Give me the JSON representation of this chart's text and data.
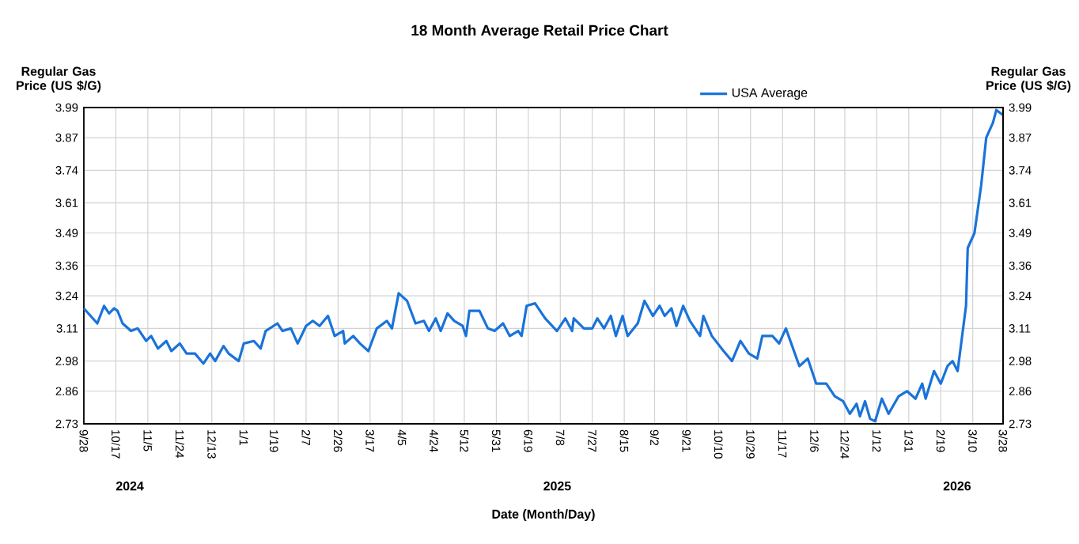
{
  "chart_data": {
    "type": "line",
    "title": "18 Month Average Retail Price Chart",
    "xlabel": "Date (Month/Day)",
    "ylabel": "Regular Gas Price (US $/G)",
    "y2label": "Regular Gas Price (US $/G)",
    "xlim": [
      "2024-09-28",
      "2026-03-28"
    ],
    "xticks": [
      {
        "value": "2024-09-28",
        "label": "9/28"
      },
      {
        "value": "2024-10-17",
        "label": "10/17"
      },
      {
        "value": "2024-11-05",
        "label": "11/5"
      },
      {
        "value": "2024-11-24",
        "label": "11/24"
      },
      {
        "value": "2024-12-13",
        "label": "12/13"
      },
      {
        "value": "2025-01-01",
        "label": "1/1"
      },
      {
        "value": "2025-01-19",
        "label": "1/19"
      },
      {
        "value": "2025-02-07",
        "label": "2/7"
      },
      {
        "value": "2025-02-26",
        "label": "2/26"
      },
      {
        "value": "2025-03-17",
        "label": "3/17"
      },
      {
        "value": "2025-04-05",
        "label": "4/5"
      },
      {
        "value": "2025-04-24",
        "label": "4/24"
      },
      {
        "value": "2025-05-12",
        "label": "5/12"
      },
      {
        "value": "2025-05-31",
        "label": "5/31"
      },
      {
        "value": "2025-06-19",
        "label": "6/19"
      },
      {
        "value": "2025-07-08",
        "label": "7/8"
      },
      {
        "value": "2025-07-27",
        "label": "7/27"
      },
      {
        "value": "2025-08-15",
        "label": "8/15"
      },
      {
        "value": "2025-09-02",
        "label": "9/2"
      },
      {
        "value": "2025-09-21",
        "label": "9/21"
      },
      {
        "value": "2025-10-10",
        "label": "10/10"
      },
      {
        "value": "2025-10-29",
        "label": "10/29"
      },
      {
        "value": "2025-11-17",
        "label": "11/17"
      },
      {
        "value": "2025-12-06",
        "label": "12/6"
      },
      {
        "value": "2025-12-24",
        "label": "12/24"
      },
      {
        "value": "2026-01-12",
        "label": "1/12"
      },
      {
        "value": "2026-01-31",
        "label": "1/31"
      },
      {
        "value": "2026-02-19",
        "label": "2/19"
      },
      {
        "value": "2026-03-10",
        "label": "3/10"
      },
      {
        "value": "2026-03-28",
        "label": "3/28"
      }
    ],
    "ylim": [
      2.73,
      3.99
    ],
    "yticks": [
      2.73,
      2.86,
      2.98,
      3.11,
      3.24,
      3.36,
      3.49,
      3.61,
      3.74,
      3.87,
      3.99
    ],
    "y2lim": [
      2.73,
      3.99
    ],
    "y2ticks": [
      2.73,
      2.86,
      2.98,
      3.11,
      3.24,
      3.36,
      3.49,
      3.61,
      3.74,
      3.87,
      3.99
    ],
    "grid": true,
    "legend": "top",
    "marker": "none",
    "line_style": "solid",
    "annotations": [
      "2024",
      "2025",
      "2026"
    ],
    "series": [
      {
        "name": "USA Average",
        "color": "#1a73d9",
        "x": [
          "2024-09-28",
          "2024-10-06",
          "2024-10-10",
          "2024-10-13",
          "2024-10-16",
          "2024-10-18",
          "2024-10-21",
          "2024-10-26",
          "2024-10-30",
          "2024-11-04",
          "2024-11-07",
          "2024-11-11",
          "2024-11-16",
          "2024-11-19",
          "2024-11-24",
          "2024-11-28",
          "2024-12-03",
          "2024-12-08",
          "2024-12-12",
          "2024-12-15",
          "2024-12-20",
          "2024-12-23",
          "2024-12-29",
          "2025-01-01",
          "2025-01-07",
          "2025-01-11",
          "2025-01-14",
          "2025-01-21",
          "2025-01-24",
          "2025-01-29",
          "2025-02-02",
          "2025-02-07",
          "2025-02-11",
          "2025-02-15",
          "2025-02-20",
          "2025-02-24",
          "2025-03-01",
          "2025-03-02",
          "2025-03-07",
          "2025-03-11",
          "2025-03-16",
          "2025-03-21",
          "2025-03-27",
          "2025-03-30",
          "2025-04-03",
          "2025-04-08",
          "2025-04-13",
          "2025-04-18",
          "2025-04-21",
          "2025-04-25",
          "2025-04-28",
          "2025-05-02",
          "2025-05-06",
          "2025-05-11",
          "2025-05-13",
          "2025-05-15",
          "2025-05-21",
          "2025-05-26",
          "2025-05-30",
          "2025-06-04",
          "2025-06-08",
          "2025-06-13",
          "2025-06-15",
          "2025-06-18",
          "2025-06-23",
          "2025-06-29",
          "2025-07-06",
          "2025-07-11",
          "2025-07-15",
          "2025-07-16",
          "2025-07-22",
          "2025-07-27",
          "2025-07-30",
          "2025-08-03",
          "2025-08-07",
          "2025-08-10",
          "2025-08-14",
          "2025-08-17",
          "2025-08-23",
          "2025-08-27",
          "2025-09-01",
          "2025-09-05",
          "2025-09-08",
          "2025-09-12",
          "2025-09-15",
          "2025-09-19",
          "2025-09-23",
          "2025-09-29",
          "2025-10-01",
          "2025-10-06",
          "2025-10-13",
          "2025-10-18",
          "2025-10-23",
          "2025-10-28",
          "2025-11-02",
          "2025-11-05",
          "2025-11-11",
          "2025-11-15",
          "2025-11-19",
          "2025-11-27",
          "2025-12-02",
          "2025-12-07",
          "2025-12-13",
          "2025-12-18",
          "2025-12-23",
          "2025-12-27",
          "2025-12-31",
          "2026-01-02",
          "2026-01-05",
          "2026-01-08",
          "2026-01-11",
          "2026-01-15",
          "2026-01-19",
          "2026-01-25",
          "2026-01-30",
          "2026-02-04",
          "2026-02-08",
          "2026-02-10",
          "2026-02-15",
          "2026-02-19",
          "2026-02-23",
          "2026-02-26",
          "2026-03-01",
          "2026-03-06",
          "2026-03-07",
          "2026-03-11",
          "2026-03-15",
          "2026-03-18",
          "2026-03-22",
          "2026-03-24",
          "2026-03-28"
        ],
        "values": [
          3.19,
          3.13,
          3.2,
          3.17,
          3.19,
          3.18,
          3.13,
          3.1,
          3.11,
          3.06,
          3.08,
          3.03,
          3.06,
          3.02,
          3.05,
          3.01,
          3.01,
          2.97,
          3.01,
          2.98,
          3.04,
          3.01,
          2.98,
          3.05,
          3.06,
          3.03,
          3.1,
          3.13,
          3.1,
          3.11,
          3.05,
          3.12,
          3.14,
          3.12,
          3.16,
          3.08,
          3.1,
          3.05,
          3.08,
          3.05,
          3.02,
          3.11,
          3.14,
          3.11,
          3.25,
          3.22,
          3.13,
          3.14,
          3.1,
          3.15,
          3.1,
          3.17,
          3.14,
          3.12,
          3.08,
          3.18,
          3.18,
          3.11,
          3.1,
          3.13,
          3.08,
          3.1,
          3.08,
          3.2,
          3.21,
          3.15,
          3.1,
          3.15,
          3.1,
          3.15,
          3.11,
          3.11,
          3.15,
          3.11,
          3.16,
          3.08,
          3.16,
          3.08,
          3.13,
          3.22,
          3.16,
          3.2,
          3.16,
          3.19,
          3.12,
          3.2,
          3.14,
          3.08,
          3.16,
          3.08,
          3.02,
          2.98,
          3.06,
          3.01,
          2.99,
          3.08,
          3.08,
          3.05,
          3.11,
          2.96,
          2.99,
          2.89,
          2.89,
          2.84,
          2.82,
          2.77,
          2.81,
          2.76,
          2.82,
          2.75,
          2.74,
          2.83,
          2.77,
          2.84,
          2.86,
          2.83,
          2.89,
          2.83,
          2.94,
          2.89,
          2.96,
          2.98,
          2.94,
          3.2,
          3.43,
          3.49,
          3.68,
          3.87,
          3.93,
          3.98,
          3.96
        ]
      }
    ]
  }
}
